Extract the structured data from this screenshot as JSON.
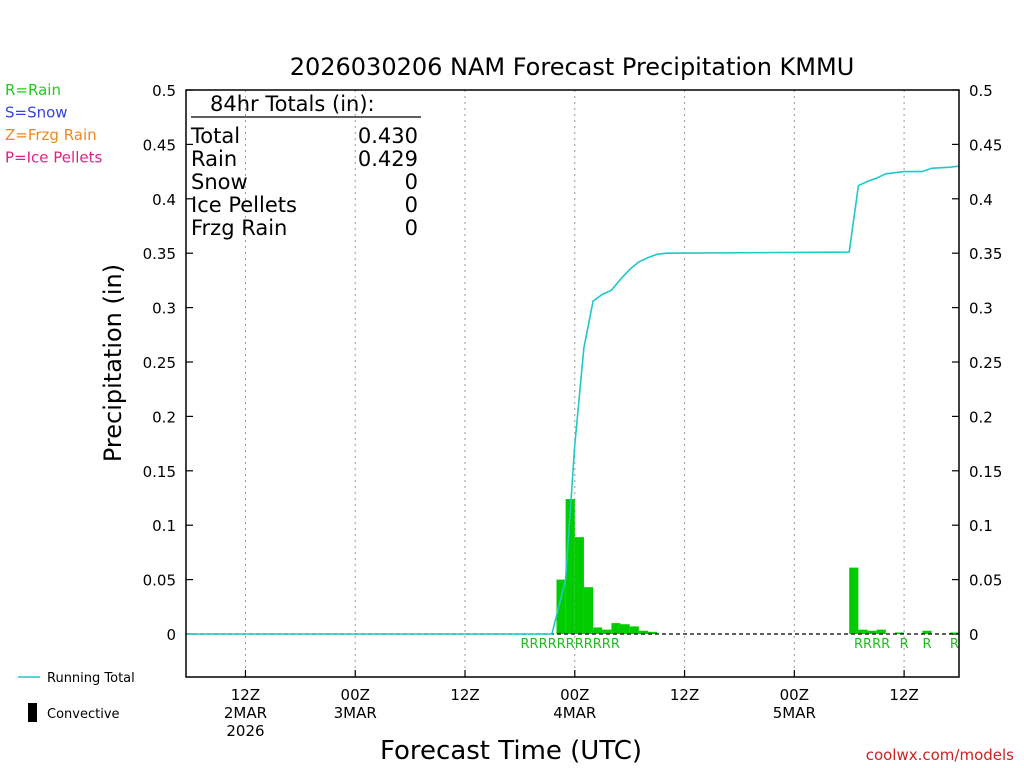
{
  "chart_data": {
    "type": "bar",
    "title": "2026030206 NAM Forecast Precipitation KMMU",
    "xlabel": "Forecast Time (UTC)",
    "ylabel": "Precipitation (in)",
    "ylim": [
      0,
      0.5
    ],
    "xlim_hours": [
      -0.5,
      84
    ],
    "y_ticks": [
      "0",
      "0.05",
      "0.1",
      "0.15",
      "0.2",
      "0.25",
      "0.3",
      "0.35",
      "0.4",
      "0.45",
      "0.5"
    ],
    "x_ticks": [
      {
        "hour": 6,
        "line1": "12Z",
        "line2": "2MAR",
        "line3": "2026"
      },
      {
        "hour": 18,
        "line1": "00Z",
        "line2": "3MAR",
        "line3": ""
      },
      {
        "hour": 30,
        "line1": "12Z",
        "line2": "",
        "line3": ""
      },
      {
        "hour": 42,
        "line1": "00Z",
        "line2": "4MAR",
        "line3": ""
      },
      {
        "hour": 54,
        "line1": "12Z",
        "line2": "",
        "line3": ""
      },
      {
        "hour": 66,
        "line1": "00Z",
        "line2": "5MAR",
        "line3": ""
      },
      {
        "hour": 78,
        "line1": "12Z",
        "line2": "",
        "line3": ""
      }
    ],
    "bars": [
      {
        "hour": 41,
        "value": 0.05
      },
      {
        "hour": 42,
        "value": 0.124
      },
      {
        "hour": 43,
        "value": 0.089
      },
      {
        "hour": 44,
        "value": 0.043
      },
      {
        "hour": 45,
        "value": 0.006
      },
      {
        "hour": 46,
        "value": 0.004
      },
      {
        "hour": 47,
        "value": 0.01
      },
      {
        "hour": 48,
        "value": 0.009
      },
      {
        "hour": 49,
        "value": 0.007
      },
      {
        "hour": 50,
        "value": 0.003
      },
      {
        "hour": 51,
        "value": 0.002
      },
      {
        "hour": 73,
        "value": 0.061
      },
      {
        "hour": 74,
        "value": 0.004
      },
      {
        "hour": 75,
        "value": 0.003
      },
      {
        "hour": 76,
        "value": 0.004
      },
      {
        "hour": 78,
        "value": 0.001
      },
      {
        "hour": 81,
        "value": 0.003
      },
      {
        "hour": 84,
        "value": 0.001
      }
    ],
    "series": [
      {
        "name": "Running Total",
        "points": [
          {
            "hour": -0.5,
            "value": 0
          },
          {
            "hour": 39.5,
            "value": 0
          },
          {
            "hour": 41,
            "value": 0.05
          },
          {
            "hour": 42,
            "value": 0.174
          },
          {
            "hour": 43,
            "value": 0.263
          },
          {
            "hour": 44,
            "value": 0.306
          },
          {
            "hour": 45,
            "value": 0.312
          },
          {
            "hour": 46,
            "value": 0.316
          },
          {
            "hour": 47,
            "value": 0.326
          },
          {
            "hour": 48,
            "value": 0.335
          },
          {
            "hour": 49,
            "value": 0.342
          },
          {
            "hour": 50,
            "value": 0.346
          },
          {
            "hour": 51,
            "value": 0.349
          },
          {
            "hour": 52,
            "value": 0.35
          },
          {
            "hour": 72,
            "value": 0.351
          },
          {
            "hour": 73,
            "value": 0.412
          },
          {
            "hour": 74,
            "value": 0.416
          },
          {
            "hour": 75,
            "value": 0.419
          },
          {
            "hour": 76,
            "value": 0.423
          },
          {
            "hour": 77,
            "value": 0.424
          },
          {
            "hour": 78,
            "value": 0.425
          },
          {
            "hour": 80,
            "value": 0.425
          },
          {
            "hour": 81,
            "value": 0.428
          },
          {
            "hour": 83,
            "value": 0.429
          },
          {
            "hour": 84,
            "value": 0.43
          }
        ]
      }
    ],
    "ptype_labels": [
      {
        "hour": 41.5,
        "text": "RRRRRRRRRRR"
      },
      {
        "hour": 74.5,
        "text": "RRRR"
      },
      {
        "hour": 78,
        "text": "R"
      },
      {
        "hour": 80.5,
        "text": "R"
      },
      {
        "hour": 83.5,
        "text": "R"
      }
    ]
  },
  "totals": {
    "header": "84hr Totals (in):",
    "rows": [
      {
        "label": "Total",
        "value": "0.430"
      },
      {
        "label": "Rain",
        "value": "0.429"
      },
      {
        "label": "Snow",
        "value": "0"
      },
      {
        "label": "Ice Pellets",
        "value": "0"
      },
      {
        "label": "Frzg Rain",
        "value": "0"
      }
    ]
  },
  "ptype_legend": [
    {
      "text": "R=Rain",
      "color": "#22cc22"
    },
    {
      "text": "S=Snow",
      "color": "#3344dd"
    },
    {
      "text": "Z=Frzg Rain",
      "color": "#ee8822"
    },
    {
      "text": "P=Ice Pellets",
      "color": "#dd2288"
    }
  ],
  "legend": {
    "running_total": "Running Total",
    "convective": "Convective"
  },
  "credit": "coolwx.com/models",
  "colors": {
    "bar": "#00cc00",
    "line": "#20c8c8",
    "ptype_text": "#22bb22",
    "credit": "#cc2222"
  }
}
